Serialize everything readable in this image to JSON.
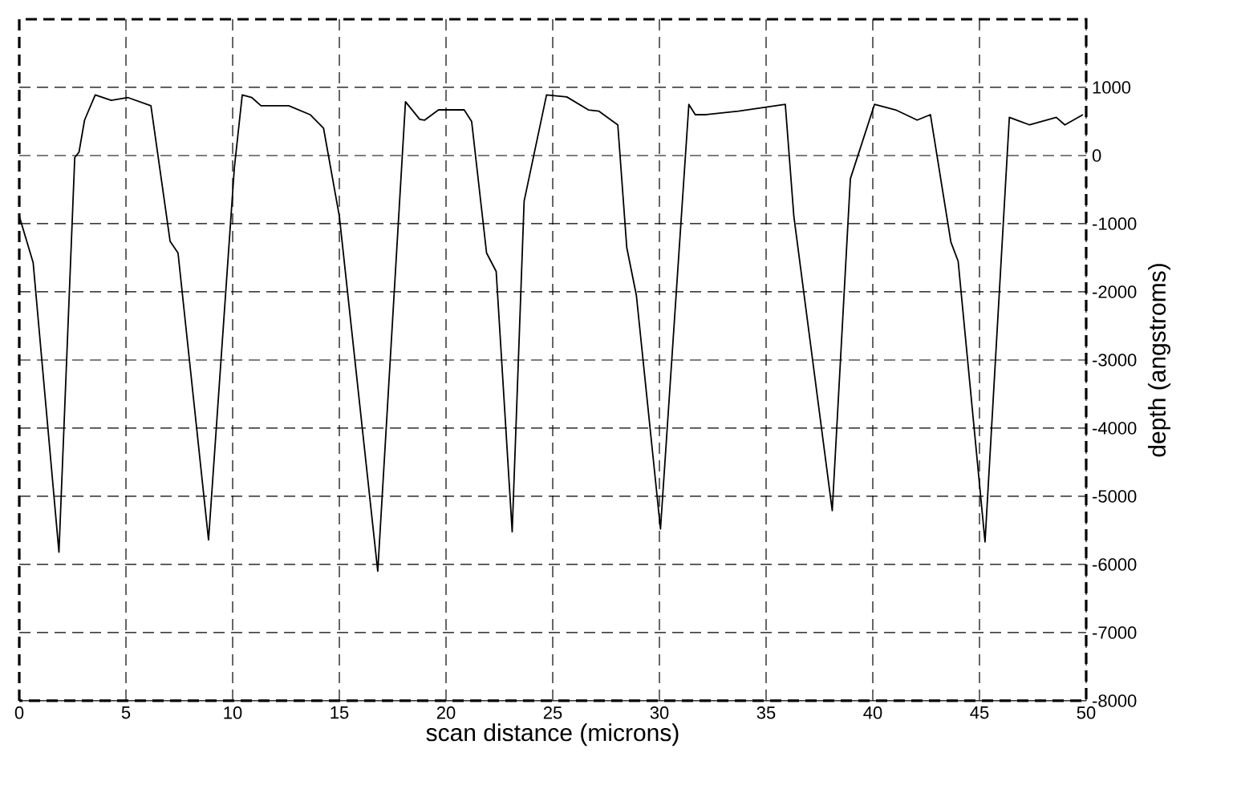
{
  "chart_data": {
    "type": "line",
    "xlabel": "scan distance (microns)",
    "ylabel": "depth (angstroms)",
    "x": [
      0,
      0.65,
      1.86,
      2.6,
      2.8,
      3.06,
      3.56,
      4.31,
      5.1,
      6.17,
      7.07,
      7.44,
      8.87,
      10.08,
      10.45,
      10.9,
      11.33,
      12.63,
      13.63,
      14.26,
      15.0,
      16.8,
      18.1,
      18.77,
      19.0,
      19.65,
      20.85,
      21.2,
      21.9,
      22.35,
      23.1,
      23.66,
      24.71,
      25.66,
      26.67,
      27.17,
      28.05,
      28.47,
      28.92,
      30.05,
      31.38,
      31.68,
      32.2,
      33.7,
      35.9,
      36.3,
      38.1,
      38.95,
      40.08,
      41.07,
      42.08,
      42.7,
      43.66,
      44.0,
      45.26,
      46.4,
      47.35,
      48.6,
      49.0,
      49.85
    ],
    "values": [
      -890,
      -1570,
      -5820,
      -30,
      50,
      520,
      890,
      810,
      850,
      730,
      -1260,
      -1430,
      -5640,
      -180,
      890,
      850,
      730,
      730,
      600,
      400,
      -890,
      -6100,
      790,
      530,
      520,
      670,
      670,
      500,
      -1430,
      -1700,
      -5520,
      -670,
      890,
      860,
      670,
      650,
      450,
      -1350,
      -2050,
      -5480,
      750,
      600,
      600,
      650,
      750,
      -890,
      -5210,
      -340,
      750,
      670,
      520,
      600,
      -1270,
      -1550,
      -5670,
      560,
      450,
      560,
      450,
      600
    ],
    "color": "#000000",
    "line_style": "solid",
    "marker": "none",
    "xlim": [
      0,
      50
    ],
    "ylim": [
      -8000,
      2000
    ],
    "xticks": [
      0,
      5,
      10,
      15,
      20,
      25,
      30,
      35,
      40,
      45,
      50
    ],
    "yticks": [
      -8000,
      -7000,
      -6000,
      -5000,
      -4000,
      -3000,
      -2000,
      -1000,
      0,
      1000
    ],
    "grid": true
  }
}
